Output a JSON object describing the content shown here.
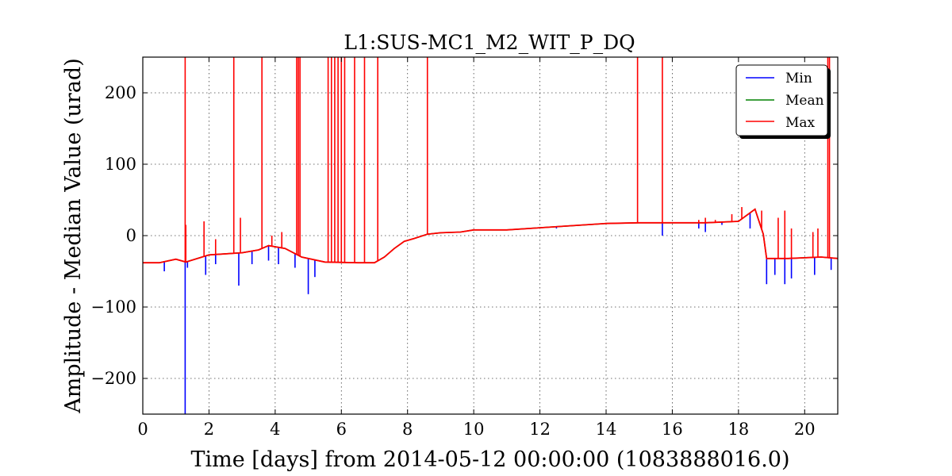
{
  "chart_data": {
    "type": "line",
    "title": "L1:SUS-MC1_M2_WIT_P_DQ",
    "xlabel": "Time [days] from 2014-05-12 00:00:00 (1083888016.0)",
    "ylabel": "Amplitude - Median Value (urad)",
    "xlim": [
      0,
      21
    ],
    "ylim": [
      -250,
      250
    ],
    "x_ticks": [
      0,
      2,
      4,
      6,
      8,
      10,
      12,
      14,
      16,
      18,
      20
    ],
    "x_tick_labels": [
      "0",
      "2",
      "4",
      "6",
      "8",
      "10",
      "12",
      "14",
      "16",
      "18",
      "20"
    ],
    "y_ticks": [
      -200,
      -100,
      0,
      100,
      200
    ],
    "y_tick_labels": [
      "−200",
      "−100",
      "0",
      "100",
      "200"
    ],
    "grid": true,
    "legend_position": "top-right",
    "series": [
      {
        "name": "Min",
        "color": "#0000ff"
      },
      {
        "name": "Mean",
        "color": "#008000"
      },
      {
        "name": "Max",
        "color": "#ff0000"
      }
    ],
    "baseline": {
      "x": [
        0,
        0.5,
        1.0,
        1.3,
        2.0,
        3.0,
        3.5,
        3.8,
        4.3,
        4.8,
        5.5,
        6.5,
        7.0,
        7.3,
        7.6,
        7.9,
        8.2,
        8.6,
        9.0,
        9.6,
        10.0,
        11.0,
        12.0,
        13.0,
        14.0,
        15.0,
        16.0,
        17.0,
        18.0,
        18.5,
        18.75,
        18.85,
        19.5,
        20.5,
        21.0
      ],
      "y": [
        -38,
        -38,
        -33,
        -37,
        -27,
        -24,
        -20,
        -14,
        -18,
        -30,
        -37,
        -38,
        -38,
        -30,
        -18,
        -8,
        -4,
        2,
        4,
        5,
        8,
        8,
        11,
        14,
        17,
        18,
        18,
        18,
        20,
        37,
        2,
        -32,
        -32,
        -30,
        -32
      ]
    },
    "max_spikes": [
      {
        "x": 1.28,
        "y": 250
      },
      {
        "x": 1.3,
        "y": 15
      },
      {
        "x": 1.85,
        "y": 20
      },
      {
        "x": 2.2,
        "y": -5
      },
      {
        "x": 2.75,
        "y": 250
      },
      {
        "x": 2.95,
        "y": 25
      },
      {
        "x": 3.6,
        "y": 250
      },
      {
        "x": 3.9,
        "y": 0
      },
      {
        "x": 4.2,
        "y": 5
      },
      {
        "x": 4.65,
        "y": 250
      },
      {
        "x": 4.7,
        "y": 250
      },
      {
        "x": 4.75,
        "y": 250
      },
      {
        "x": 5.6,
        "y": 250
      },
      {
        "x": 5.7,
        "y": 250
      },
      {
        "x": 5.8,
        "y": 250
      },
      {
        "x": 5.9,
        "y": 250
      },
      {
        "x": 6.0,
        "y": 250
      },
      {
        "x": 6.1,
        "y": 250
      },
      {
        "x": 6.4,
        "y": 250
      },
      {
        "x": 6.7,
        "y": 250
      },
      {
        "x": 7.1,
        "y": 250
      },
      {
        "x": 8.6,
        "y": 250
      },
      {
        "x": 14.95,
        "y": 250
      },
      {
        "x": 15.7,
        "y": 250
      },
      {
        "x": 16.8,
        "y": 22
      },
      {
        "x": 17.0,
        "y": 25
      },
      {
        "x": 17.3,
        "y": 22
      },
      {
        "x": 17.8,
        "y": 30
      },
      {
        "x": 18.1,
        "y": 40
      },
      {
        "x": 18.7,
        "y": 35
      },
      {
        "x": 19.2,
        "y": 25
      },
      {
        "x": 19.4,
        "y": 35
      },
      {
        "x": 19.6,
        "y": 10
      },
      {
        "x": 20.25,
        "y": 5
      },
      {
        "x": 20.4,
        "y": 10
      },
      {
        "x": 20.7,
        "y": 250
      },
      {
        "x": 20.75,
        "y": 250
      }
    ],
    "min_spikes": [
      {
        "x": 0.65,
        "y": -50
      },
      {
        "x": 1.28,
        "y": -250
      },
      {
        "x": 1.35,
        "y": -45
      },
      {
        "x": 1.9,
        "y": -55
      },
      {
        "x": 2.2,
        "y": -40
      },
      {
        "x": 2.9,
        "y": -70
      },
      {
        "x": 3.3,
        "y": -40
      },
      {
        "x": 3.8,
        "y": -35
      },
      {
        "x": 4.1,
        "y": -40
      },
      {
        "x": 4.6,
        "y": -45
      },
      {
        "x": 5.0,
        "y": -82
      },
      {
        "x": 5.2,
        "y": -58
      },
      {
        "x": 12.5,
        "y": 10
      },
      {
        "x": 15.7,
        "y": 0
      },
      {
        "x": 16.8,
        "y": 10
      },
      {
        "x": 17.0,
        "y": 5
      },
      {
        "x": 17.5,
        "y": 15
      },
      {
        "x": 18.35,
        "y": 10
      },
      {
        "x": 18.85,
        "y": -68
      },
      {
        "x": 19.1,
        "y": -55
      },
      {
        "x": 19.4,
        "y": -68
      },
      {
        "x": 19.6,
        "y": -60
      },
      {
        "x": 20.3,
        "y": -55
      },
      {
        "x": 20.8,
        "y": -48
      }
    ]
  }
}
